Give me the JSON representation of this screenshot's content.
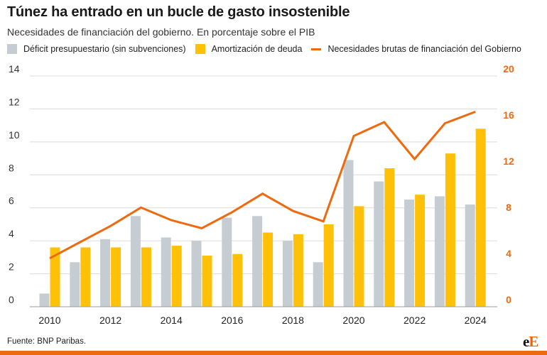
{
  "header": {
    "title": "Túnez ha entrado en un bucle de gasto insostenible",
    "subtitle": "Necesidades de financiación del gobierno. En porcentaje sobre el PIB"
  },
  "legend": {
    "items": [
      {
        "label": "Déficit presupuestario (sin subvenciones)",
        "color": "#c5ccd2",
        "kind": "bar"
      },
      {
        "label": "Amortización de deuda",
        "color": "#ffc107",
        "kind": "bar"
      },
      {
        "label": "Necesidades brutas de financiación del Gobierno",
        "color": "#ee6a0e",
        "kind": "line"
      }
    ]
  },
  "footer": {
    "source": "Fuente: BNP Paribas.",
    "logo_small": "e",
    "logo_big": "E"
  },
  "colors": {
    "deficit": "#c5ccd2",
    "debt": "#ffc107",
    "line": "#ee6a0e",
    "axis_left_text": "#333333",
    "axis_right_text": "#ee6a0e",
    "grid": "#dcdcdc"
  },
  "chart_data": {
    "type": "bar",
    "title": "Túnez ha entrado en un bucle de gasto insostenible",
    "subtitle": "Necesidades de financiación del gobierno. En porcentaje sobre el PIB",
    "x": [
      2010,
      2011,
      2012,
      2013,
      2014,
      2015,
      2016,
      2017,
      2018,
      2019,
      2020,
      2021,
      2022,
      2023,
      2024
    ],
    "x_tick_labels": [
      "2010",
      "2012",
      "2014",
      "2016",
      "2018",
      "2020",
      "2022",
      "2024"
    ],
    "y_left": {
      "ylim": [
        0,
        14
      ],
      "ticks": [
        "0",
        "2",
        "4",
        "6",
        "8",
        "10",
        "12",
        "14"
      ]
    },
    "y_right": {
      "ylim": [
        0,
        20
      ],
      "ticks": [
        "0",
        "4",
        "8",
        "12",
        "16",
        "20"
      ]
    },
    "grid": true,
    "legend_position": "top",
    "series": [
      {
        "name": "Déficit presupuestario (sin subvenciones)",
        "type": "bar",
        "axis": "left",
        "values": [
          0.8,
          2.7,
          4.1,
          5.5,
          4.2,
          4.0,
          5.4,
          5.5,
          4.0,
          2.7,
          8.9,
          7.6,
          6.5,
          6.7,
          6.2
        ]
      },
      {
        "name": "Amortización de deuda",
        "type": "bar",
        "axis": "left",
        "values": [
          3.6,
          3.6,
          3.6,
          3.6,
          3.7,
          3.1,
          3.2,
          4.5,
          4.4,
          5.0,
          6.1,
          8.4,
          6.8,
          9.3,
          10.8
        ]
      },
      {
        "name": "Necesidades brutas de financiación del Gobierno",
        "type": "line",
        "axis": "right",
        "values": [
          4.2,
          5.6,
          7.0,
          8.6,
          7.5,
          6.8,
          8.2,
          9.8,
          8.3,
          7.4,
          14.8,
          16.0,
          12.8,
          15.9,
          16.9
        ]
      }
    ]
  }
}
